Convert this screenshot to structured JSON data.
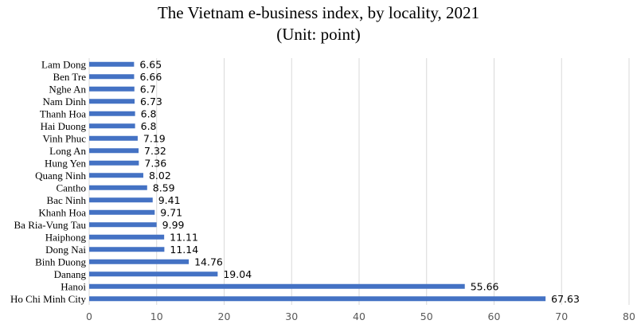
{
  "chart_data": {
    "type": "bar",
    "orientation": "horizontal",
    "title": "The Vietnam e-business index, by locality, 2021",
    "subtitle": "(Unit: point)",
    "xlabel": "",
    "ylabel": "",
    "xlim": [
      0,
      80
    ],
    "x_ticks": [
      0,
      10,
      20,
      30,
      40,
      50,
      60,
      70,
      80
    ],
    "grid": "vertical",
    "legend": "none",
    "bar_color": "#4472C4",
    "categories": [
      "Lam Dong",
      "Ben Tre",
      "Nghe An",
      "Nam Dinh",
      "Thanh Hoa",
      "Hai Duong",
      "Vinh Phuc",
      "Long An",
      "Hung Yen",
      "Quang Ninh",
      "Cantho",
      "Bac Ninh",
      "Khanh Hoa",
      "Ba Ria-Vung Tau",
      "Haiphong",
      "Dong Nai",
      "Binh Duong",
      "Danang",
      "Hanoi",
      "Ho Chi Minh City"
    ],
    "values": [
      6.65,
      6.66,
      6.7,
      6.73,
      6.8,
      6.8,
      7.19,
      7.32,
      7.36,
      8.02,
      8.59,
      9.41,
      9.71,
      9.99,
      11.11,
      11.14,
      14.76,
      19.04,
      55.66,
      67.63
    ],
    "value_labels": [
      "6.65",
      "6.66",
      "6.7",
      "6.73",
      "6.8",
      "6.8",
      "7.19",
      "7.32",
      "7.36",
      "8.02",
      "8.59",
      "9.41",
      "9.71",
      "9.99",
      "11.11",
      "11.14",
      "14.76",
      "19.04",
      "55.66",
      "67.63"
    ]
  }
}
